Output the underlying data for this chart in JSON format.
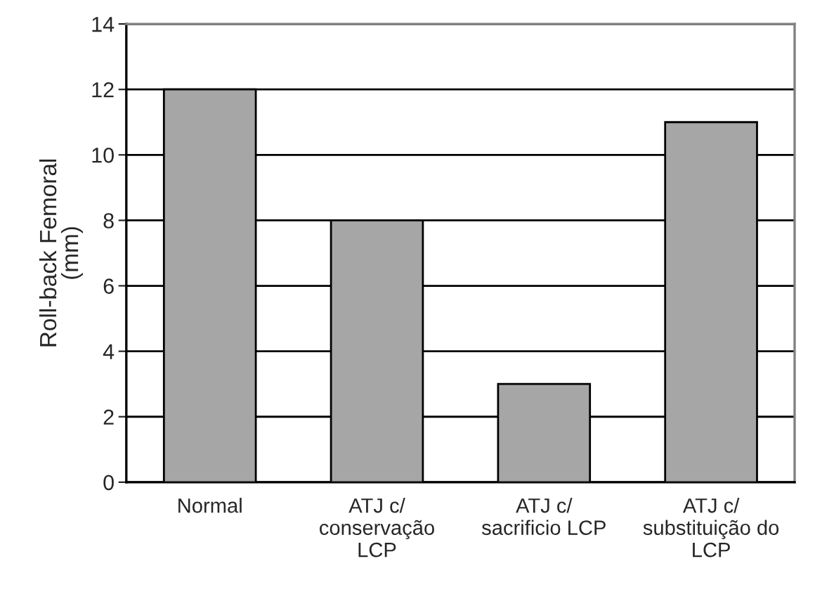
{
  "chart_data": {
    "type": "bar",
    "ylabel": "Roll-back Femoral\n(mm)",
    "categories": [
      "Normal",
      "ATJ c/\nconservação\nLCP",
      "ATJ c/\nsacrificio LCP",
      "ATJ c/\nsubstituição do\nLCP"
    ],
    "values": [
      12,
      8,
      3,
      11
    ],
    "color": "#a6a6a6",
    "ylim": [
      0,
      14
    ],
    "yticks": [
      0,
      2,
      4,
      6,
      8,
      10,
      12,
      14
    ],
    "grid": "y"
  }
}
